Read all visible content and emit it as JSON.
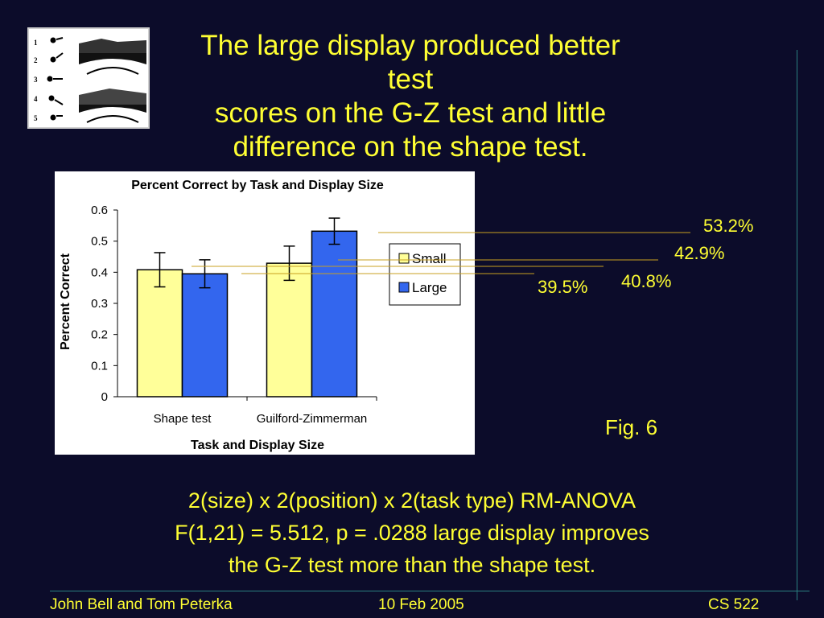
{
  "slide": {
    "title_lines": [
      "The large display produced better test",
      "scores on the G-Z test and little",
      "difference on the shape test."
    ],
    "fig_label": "Fig. 6",
    "stats_lines": [
      "2(size) x 2(position) x 2(task type) RM-ANOVA",
      "F(1,21) = 5.512, p = .0288 large display improves",
      "the G-Z test more than the shape test."
    ],
    "callouts": [
      "53.2%",
      "42.9%",
      "40.8%",
      "39.5%"
    ],
    "thumbnail_numbers": [
      "1",
      "2",
      "3",
      "4",
      "5"
    ]
  },
  "footer": {
    "left": "John Bell and Tom Peterka",
    "center": "10 Feb 2005",
    "right": "CS 522"
  },
  "colors": {
    "background": "#0c0c2a",
    "text": "#ffff33",
    "small_series": "#ffff99",
    "large_series": "#3366ee",
    "rule": "#2a8080"
  },
  "chart_data": {
    "type": "bar",
    "title": "Percent Correct by Task and Display Size",
    "xlabel": "Task and Display Size",
    "ylabel": "Percent Correct",
    "categories": [
      "Shape test",
      "Guilford-Zimmerman"
    ],
    "series": [
      {
        "name": "Small",
        "values": [
          0.408,
          0.429
        ],
        "error": [
          0.055,
          0.055
        ],
        "color": "#ffff99"
      },
      {
        "name": "Large",
        "values": [
          0.395,
          0.532
        ],
        "error": [
          0.045,
          0.042
        ],
        "color": "#3366ee"
      }
    ],
    "ylim": [
      0,
      0.6
    ],
    "yticks": [
      "0",
      "0.1",
      "0.2",
      "0.3",
      "0.4",
      "0.5",
      "0.6"
    ],
    "legend": "right"
  }
}
